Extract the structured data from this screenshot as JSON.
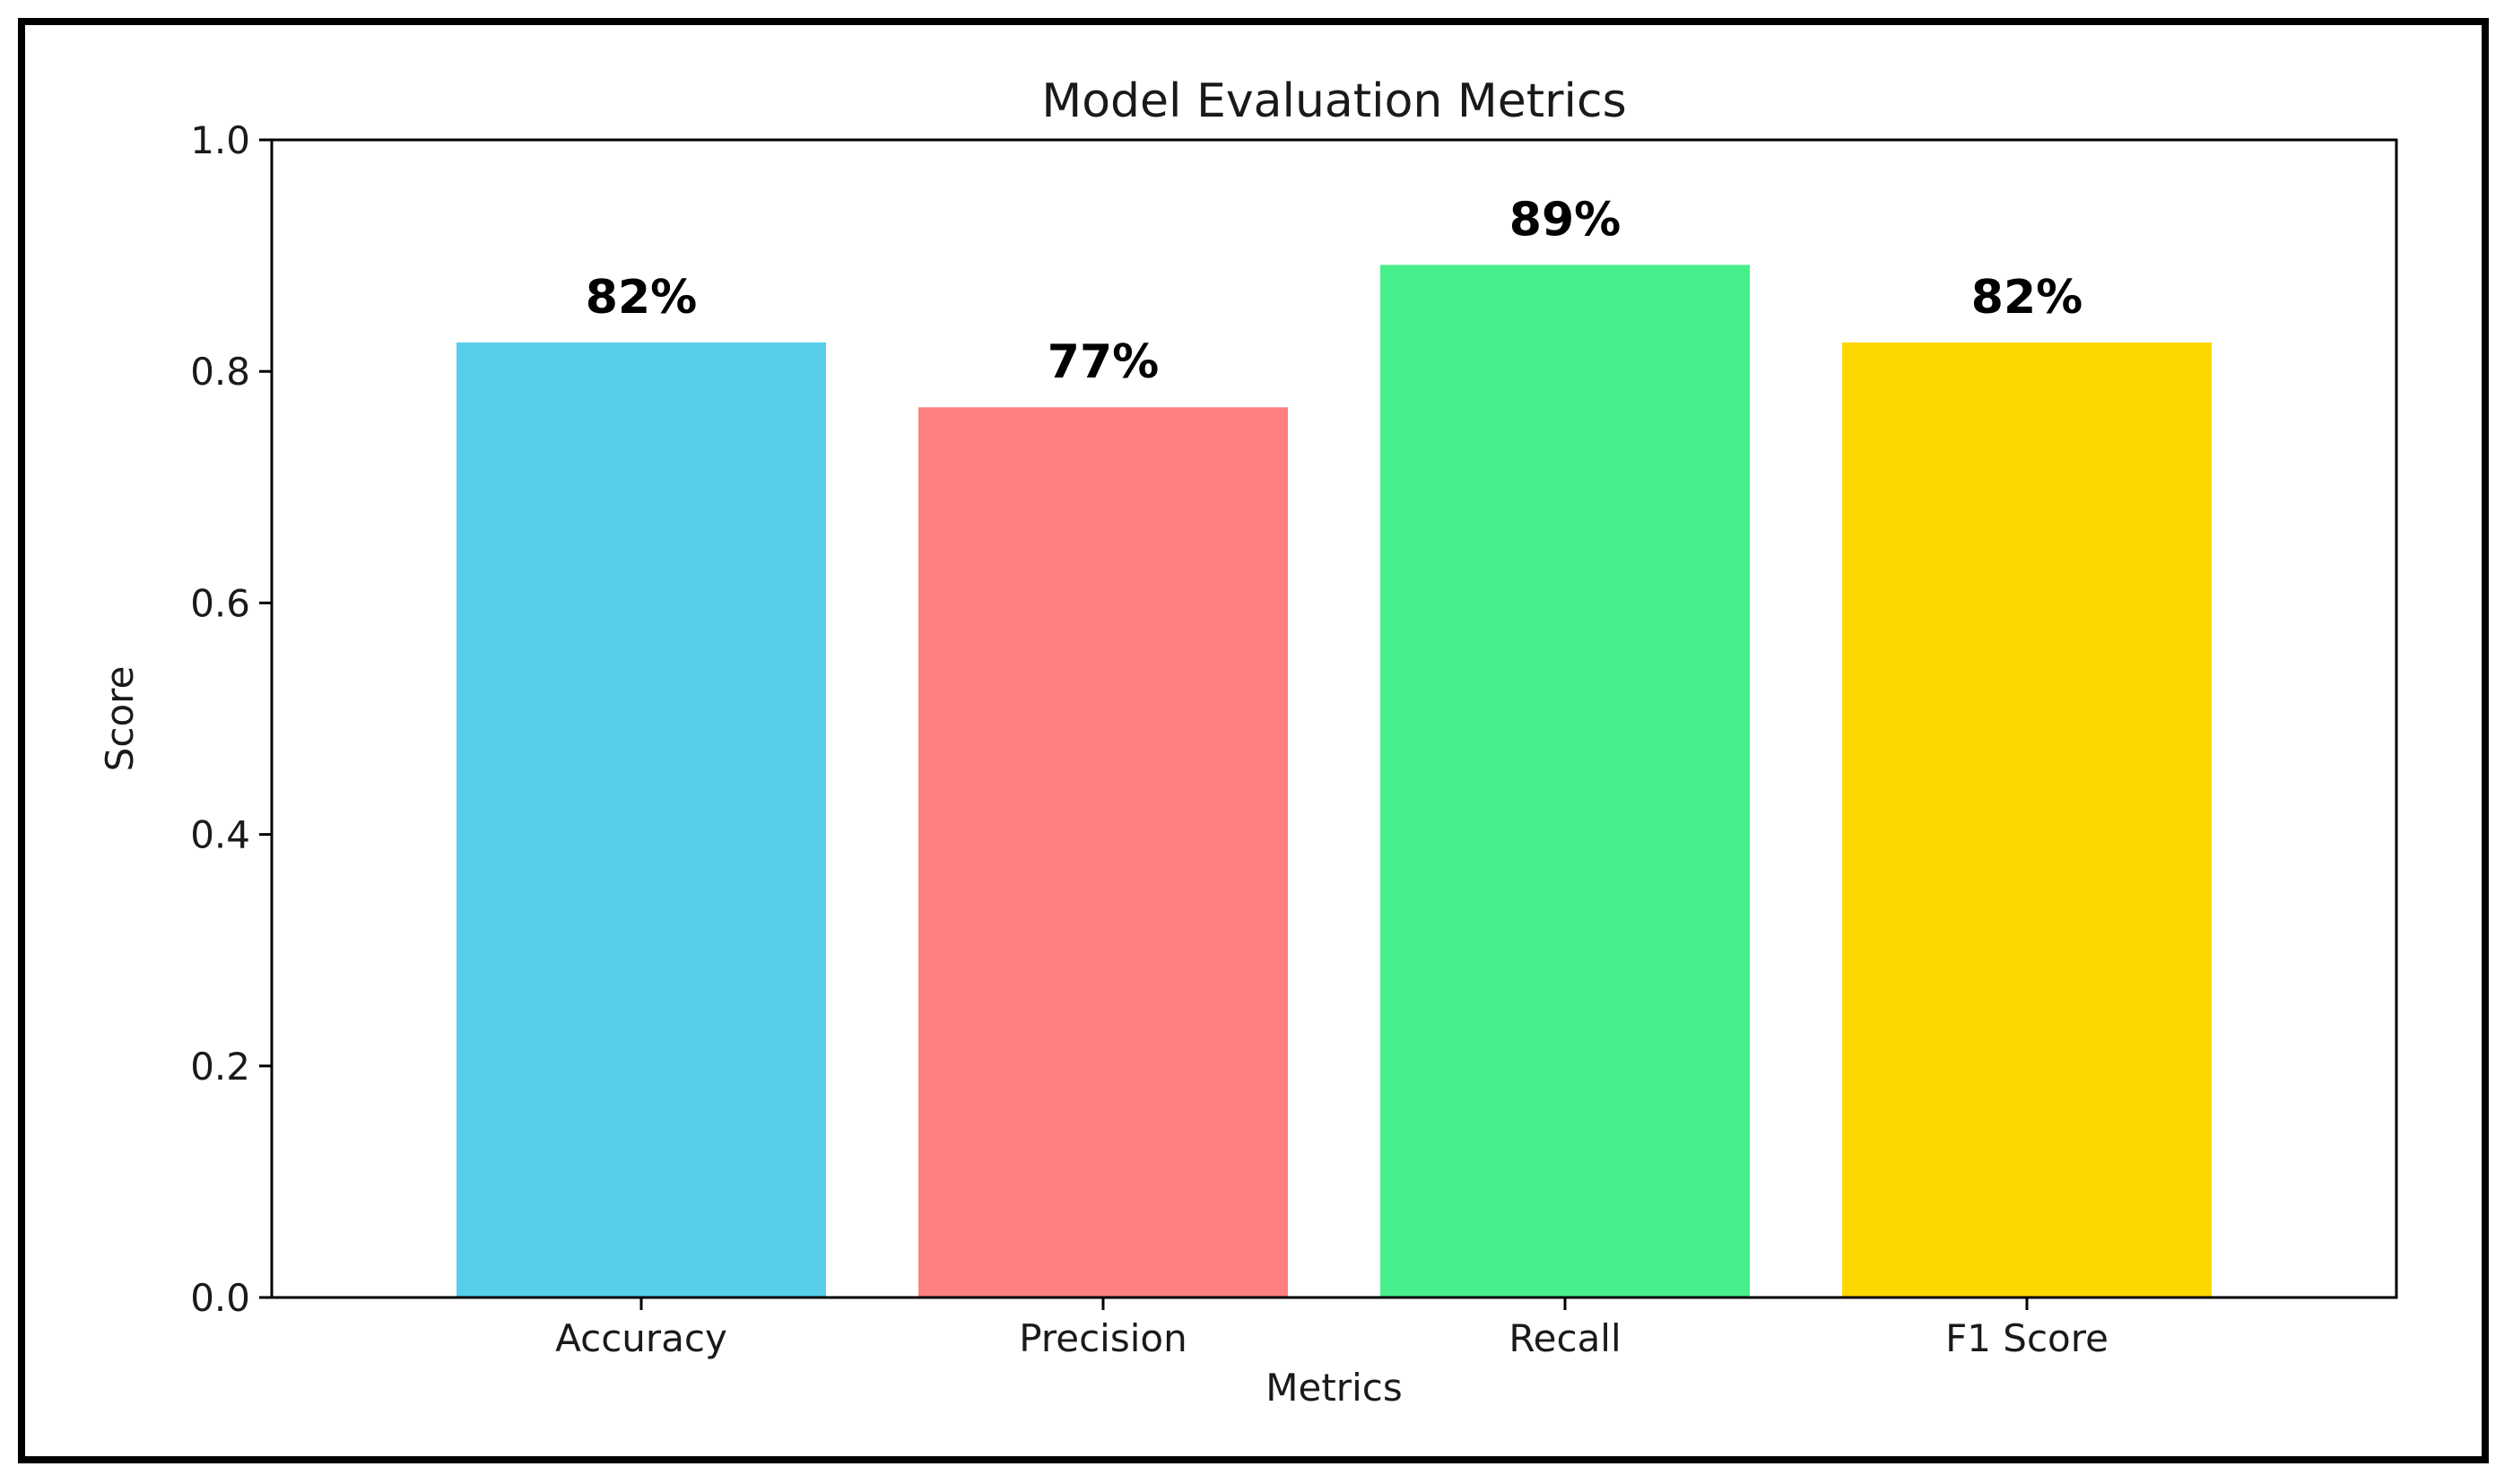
{
  "chart_data": {
    "type": "bar",
    "title": "Model Evaluation Metrics",
    "xlabel": "Metrics",
    "ylabel": "Score",
    "ylim": [
      0,
      1.0
    ],
    "yticks": [
      "0.0",
      "0.2",
      "0.4",
      "0.6",
      "0.8",
      "1.0"
    ],
    "categories": [
      "Accuracy",
      "Precision",
      "Recall",
      "F1 Score"
    ],
    "values": [
      0.825,
      0.769,
      0.892,
      0.825
    ],
    "data_labels": [
      "82%",
      "77%",
      "89%",
      "82%"
    ],
    "colors": [
      "#57CEEB",
      "#FF8080",
      "#47EF8A",
      "#FFD700"
    ],
    "grid": false,
    "legend": "none"
  }
}
